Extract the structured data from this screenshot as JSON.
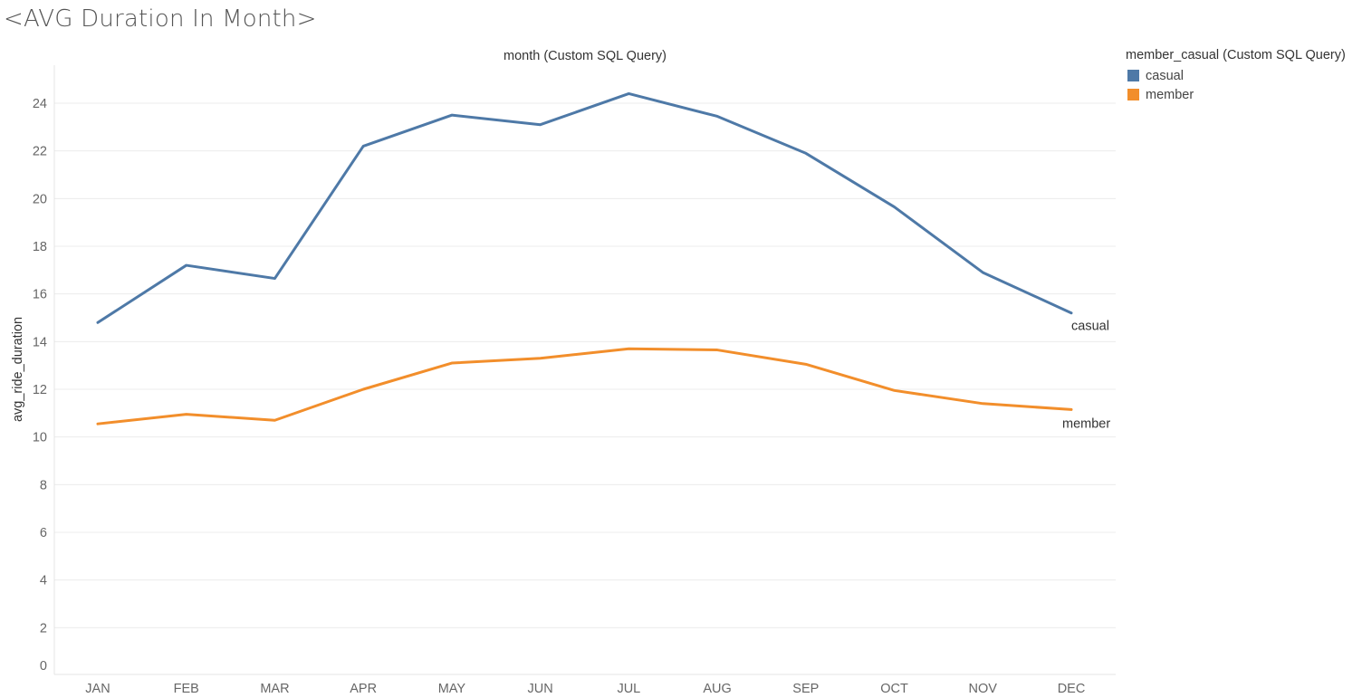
{
  "page_title": "<AVG Duration In Month>",
  "legend": {
    "title": "member_casual (Custom SQL Query)",
    "items": [
      {
        "label": "casual",
        "color": "#4e79a7"
      },
      {
        "label": "member",
        "color": "#f28e2b"
      }
    ]
  },
  "chart_data": {
    "type": "line",
    "title": "month (Custom SQL Query)",
    "xlabel": "",
    "ylabel": "avg_ride_duration",
    "categories": [
      "JAN",
      "FEB",
      "MAR",
      "APR",
      "MAY",
      "JUN",
      "JUL",
      "AUG",
      "SEP",
      "OCT",
      "NOV",
      "DEC"
    ],
    "yticks": [
      0,
      2,
      4,
      6,
      8,
      10,
      12,
      14,
      16,
      18,
      20,
      22,
      24
    ],
    "ylim": [
      0,
      25
    ],
    "grid": true,
    "legend_position": "right",
    "series": [
      {
        "name": "casual",
        "color": "#4e79a7",
        "end_label": "casual",
        "values": [
          14.8,
          17.2,
          16.65,
          22.2,
          23.5,
          23.1,
          24.4,
          23.45,
          21.9,
          19.65,
          16.9,
          15.2
        ]
      },
      {
        "name": "member",
        "color": "#f28e2b",
        "end_label": "member",
        "values": [
          10.55,
          10.95,
          10.7,
          12.0,
          13.1,
          13.3,
          13.7,
          13.65,
          13.05,
          11.95,
          11.4,
          11.15
        ]
      }
    ]
  }
}
